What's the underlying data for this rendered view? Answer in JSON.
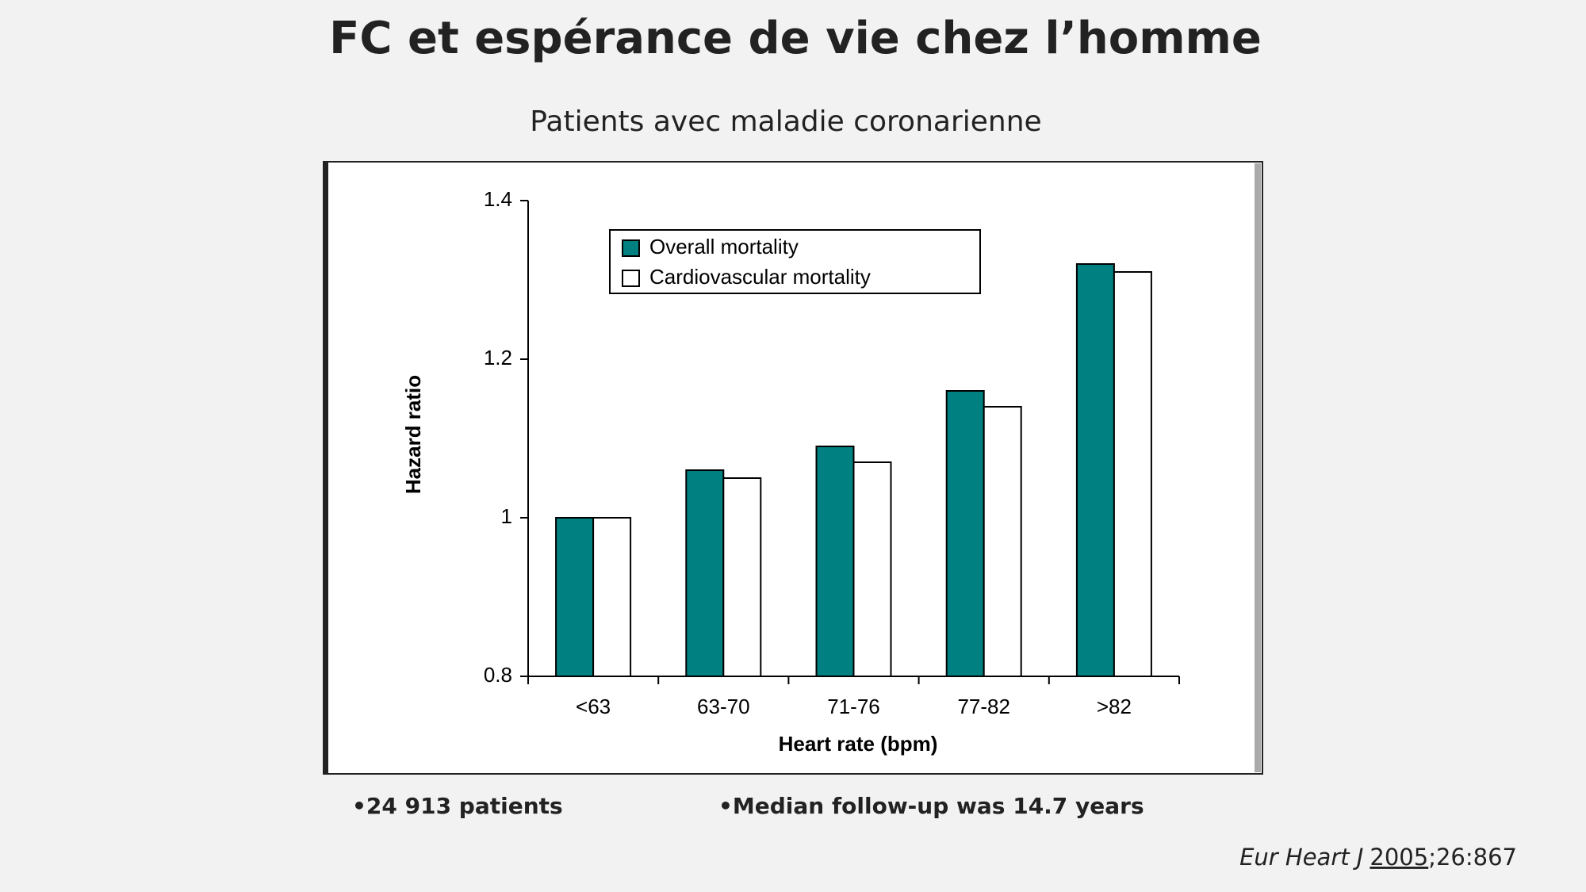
{
  "title": "FC et espérance de vie chez l’homme",
  "subtitle": "Patients avec maladie coronarienne",
  "chart_data": {
    "type": "bar",
    "x_label": "Heart rate (bpm)",
    "y_label": "Hazard ratio",
    "categories": [
      "<63",
      "63-70",
      "71-76",
      "77-82",
      ">82"
    ],
    "series": [
      {
        "name": "Overall mortality",
        "color": "#008080",
        "values": [
          1.0,
          1.06,
          1.09,
          1.16,
          1.32
        ]
      },
      {
        "name": "Cardiovascular mortality",
        "color": "#ffffff",
        "values": [
          1.0,
          1.05,
          1.07,
          1.14,
          1.31
        ]
      }
    ],
    "ylim": [
      0.8,
      1.4
    ],
    "yticks": [
      0.8,
      1,
      1.2,
      1.4
    ],
    "grid": false,
    "legend": "upper center"
  },
  "notes": [
    "•24 913 patients",
    "•Median follow-up was 14.7 years"
  ],
  "citation": {
    "journal": "Eur Heart J",
    "year": "2005",
    "rest": ";26:867"
  }
}
